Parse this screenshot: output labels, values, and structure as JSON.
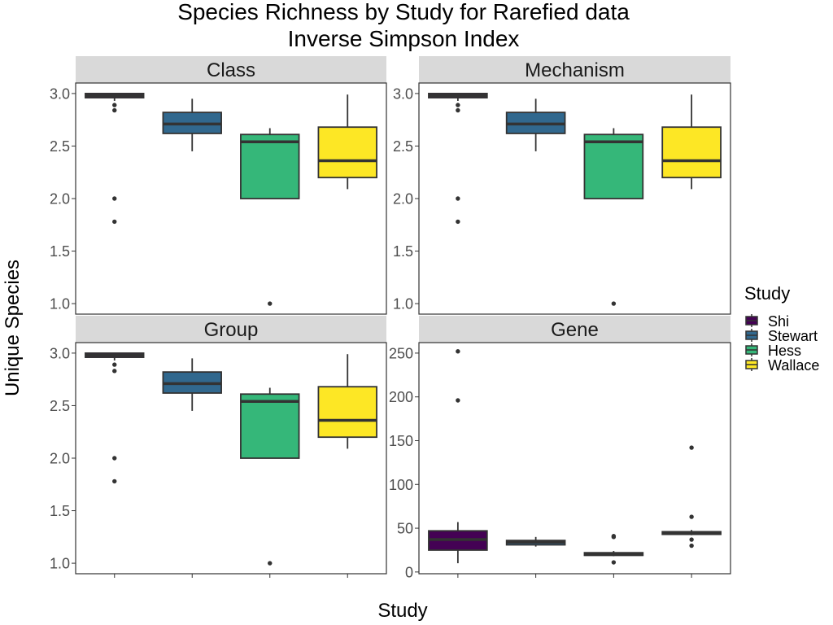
{
  "figure": {
    "title_line1": "Species Richness by Study for Rarefied data",
    "title_line2": "Inverse Simpson Index",
    "xlabel": "Study",
    "ylabel": "Unique Species",
    "legend_title": "Study"
  },
  "colors": {
    "Shi": "#440154",
    "Stewart": "#31688e",
    "Hess": "#35b779",
    "Wallace": "#fde725",
    "strip_background": "#d9d9d9",
    "box_line": "#333333"
  },
  "chart_data": [
    {
      "type": "boxplot",
      "title": "Class",
      "xlabel": "Study",
      "ylabel": "Unique Species",
      "ylim": [
        0.9,
        3.1
      ],
      "yticks": [
        1.0,
        1.5,
        2.0,
        2.5,
        3.0
      ],
      "ytick_labels": [
        "1.0",
        "1.5",
        "2.0",
        "2.5",
        "3.0"
      ],
      "legend_placement": "right",
      "grid": false,
      "categories": [
        "Shi",
        "Stewart",
        "Hess",
        "Wallace"
      ],
      "series": [
        {
          "name": "Shi",
          "min": 2.93,
          "q1": 2.96,
          "median": 2.98,
          "q3": 3.0,
          "max": 3.0,
          "outliers": [
            2.89,
            2.84,
            2.0,
            1.78
          ]
        },
        {
          "name": "Stewart",
          "min": 2.45,
          "q1": 2.62,
          "median": 2.71,
          "q3": 2.82,
          "max": 2.95,
          "outliers": []
        },
        {
          "name": "Hess",
          "min": 2.0,
          "q1": 2.0,
          "median": 2.54,
          "q3": 2.61,
          "max": 2.67,
          "outliers": [
            1.0
          ]
        },
        {
          "name": "Wallace",
          "min": 2.09,
          "q1": 2.2,
          "median": 2.36,
          "q3": 2.68,
          "max": 2.99,
          "outliers": []
        }
      ]
    },
    {
      "type": "boxplot",
      "title": "Mechanism",
      "xlabel": "Study",
      "ylabel": "Unique Species",
      "ylim": [
        0.9,
        3.1
      ],
      "yticks": [
        1.0,
        1.5,
        2.0,
        2.5,
        3.0
      ],
      "ytick_labels": [
        "1.0",
        "1.5",
        "2.0",
        "2.5",
        "3.0"
      ],
      "legend_placement": "right",
      "grid": false,
      "categories": [
        "Shi",
        "Stewart",
        "Hess",
        "Wallace"
      ],
      "series": [
        {
          "name": "Shi",
          "min": 2.93,
          "q1": 2.96,
          "median": 2.98,
          "q3": 3.0,
          "max": 3.0,
          "outliers": [
            2.89,
            2.84,
            2.0,
            1.78
          ]
        },
        {
          "name": "Stewart",
          "min": 2.45,
          "q1": 2.62,
          "median": 2.71,
          "q3": 2.82,
          "max": 2.95,
          "outliers": []
        },
        {
          "name": "Hess",
          "min": 2.0,
          "q1": 2.0,
          "median": 2.54,
          "q3": 2.61,
          "max": 2.67,
          "outliers": [
            1.0
          ]
        },
        {
          "name": "Wallace",
          "min": 2.09,
          "q1": 2.2,
          "median": 2.36,
          "q3": 2.68,
          "max": 2.99,
          "outliers": []
        }
      ]
    },
    {
      "type": "boxplot",
      "title": "Group",
      "xlabel": "Study",
      "ylabel": "Unique Species",
      "ylim": [
        0.9,
        3.1
      ],
      "yticks": [
        1.0,
        1.5,
        2.0,
        2.5,
        3.0
      ],
      "ytick_labels": [
        "1.0",
        "1.5",
        "2.0",
        "2.5",
        "3.0"
      ],
      "legend_placement": "right",
      "grid": false,
      "categories": [
        "Shi",
        "Stewart",
        "Hess",
        "Wallace"
      ],
      "series": [
        {
          "name": "Shi",
          "min": 2.93,
          "q1": 2.96,
          "median": 2.98,
          "q3": 3.0,
          "max": 3.0,
          "outliers": [
            2.89,
            2.83,
            2.0,
            1.78
          ]
        },
        {
          "name": "Stewart",
          "min": 2.45,
          "q1": 2.62,
          "median": 2.71,
          "q3": 2.82,
          "max": 2.95,
          "outliers": []
        },
        {
          "name": "Hess",
          "min": 2.0,
          "q1": 2.0,
          "median": 2.54,
          "q3": 2.61,
          "max": 2.67,
          "outliers": [
            1.0
          ]
        },
        {
          "name": "Wallace",
          "min": 2.09,
          "q1": 2.2,
          "median": 2.36,
          "q3": 2.68,
          "max": 2.99,
          "outliers": []
        }
      ]
    },
    {
      "type": "boxplot",
      "title": "Gene",
      "xlabel": "Study",
      "ylabel": "Unique Species",
      "ylim": [
        -2,
        262
      ],
      "yticks": [
        0,
        50,
        100,
        150,
        200,
        250
      ],
      "ytick_labels": [
        "0",
        "50",
        "100",
        "150",
        "200",
        "250"
      ],
      "legend_placement": "right",
      "grid": false,
      "categories": [
        "Shi",
        "Stewart",
        "Hess",
        "Wallace"
      ],
      "series": [
        {
          "name": "Shi",
          "min": 10,
          "q1": 25,
          "median": 37,
          "q3": 47,
          "max": 57,
          "outliers": [
            252,
            196
          ]
        },
        {
          "name": "Stewart",
          "min": 29,
          "q1": 31,
          "median": 34,
          "q3": 36,
          "max": 40,
          "outliers": []
        },
        {
          "name": "Hess",
          "min": 18,
          "q1": 19,
          "median": 20,
          "q3": 22,
          "max": 24,
          "outliers": [
            41,
            40,
            11
          ]
        },
        {
          "name": "Wallace",
          "min": 42,
          "q1": 43,
          "median": 45,
          "q3": 46,
          "max": 48,
          "outliers": [
            142,
            63,
            37,
            30
          ]
        }
      ]
    }
  ]
}
